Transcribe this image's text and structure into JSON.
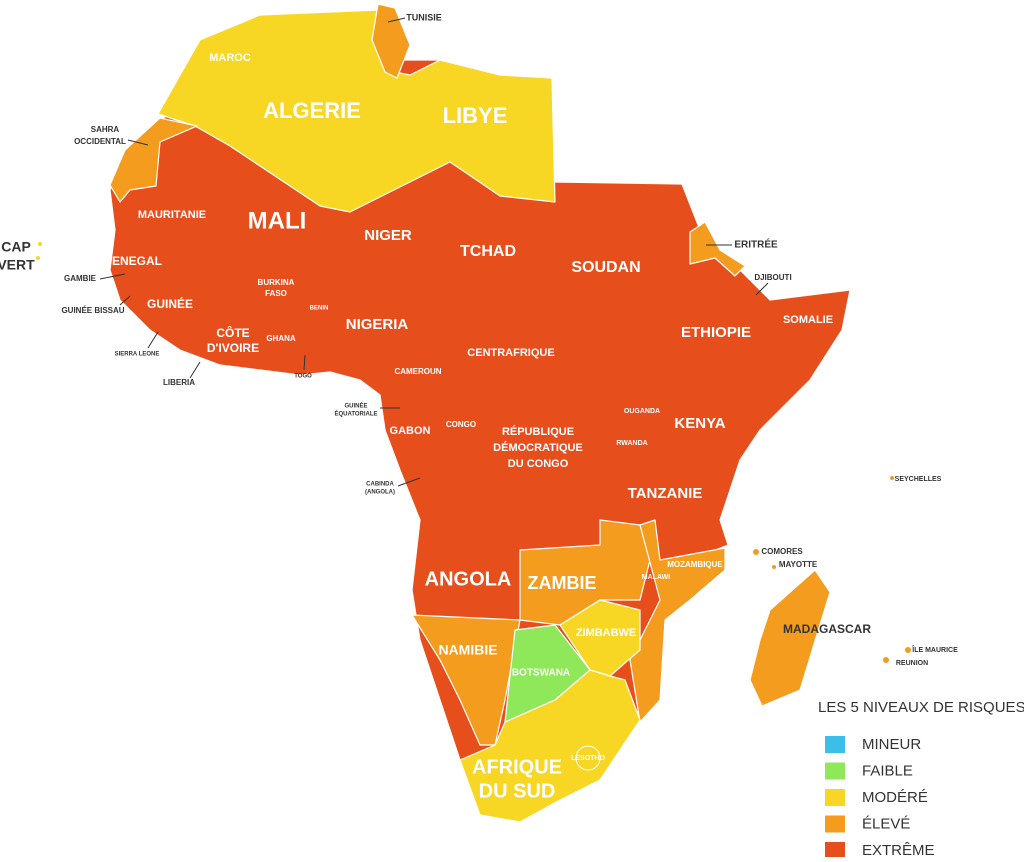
{
  "map": {
    "labels": [
      "TUNISIE",
      "MAROC",
      "ALGERIE",
      "LIBYE",
      [
        "SAHRA",
        "OCCIDENTAL"
      ],
      "MAURITANIE",
      "MALI",
      "NIGER",
      "TCHAD",
      "SOUDAN",
      "ERITRÉE",
      "DJIBOUTI",
      "SOMALIE",
      "ETHIOPIE",
      [
        "CAP",
        "VERT"
      ],
      "SENEGAL",
      "GAMBIE",
      "GUINÉE BISSAU",
      "GUINÉE",
      [
        "BURKINA",
        "FASO"
      ],
      "BENIN",
      "NIGERIA",
      "SIERRA LEONE",
      [
        "CÔTE",
        "D'IVOIRE"
      ],
      "GHANA",
      "LIBERIA",
      "TOGO",
      "CAMEROUN",
      "CENTRAFRIQUE",
      [
        "GUINÉE",
        "ÉQUATORIALE"
      ],
      "GABON",
      "CONGO",
      "OUGANDA",
      "KENYA",
      "RWANDA",
      [
        "RÉPUBLIQUE",
        "DÉMOCRATIQUE",
        "DU CONGO"
      ],
      [
        "CABINDA",
        "(ANGOLA)"
      ],
      "TANZANIE",
      "SEYCHELLES",
      "COMORES",
      "MAYOTTE",
      "MALAWI",
      "MOZAMBIQUE",
      "ANGOLA",
      "ZAMBIE",
      "MADAGASCAR",
      "ZIMBABWE",
      "NAMIBIE",
      "ÎLE MAURICE",
      "REUNION",
      "BOTSWANA",
      "LESOTHO",
      [
        "AFRIQUE",
        "DU SUD"
      ]
    ]
  },
  "legend": {
    "title": "LES 5 NIVEAUX DE RISQUES",
    "items": [
      {
        "label": "MINEUR",
        "color": "#3bbfe8"
      },
      {
        "label": "FAIBLE",
        "color": "#8ee85a"
      },
      {
        "label": "MODÉRÉ",
        "color": "#f7d723"
      },
      {
        "label": "ÉLEVÉ",
        "color": "#f39c1e"
      },
      {
        "label": "EXTRÊME",
        "color": "#e64e1c"
      }
    ]
  }
}
